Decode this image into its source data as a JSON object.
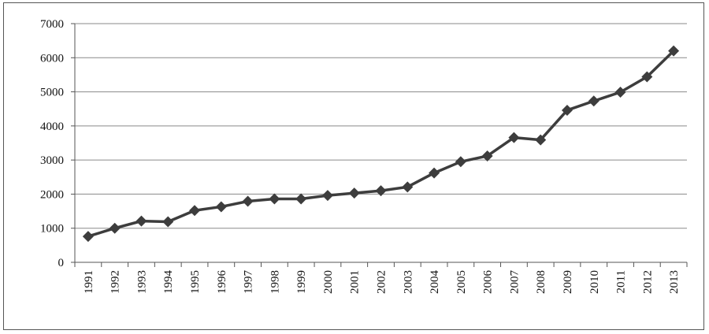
{
  "chart_data": {
    "type": "line",
    "title": "",
    "xlabel": "",
    "ylabel": "",
    "ylim": [
      0,
      7000
    ],
    "yticks": [
      0,
      1000,
      2000,
      3000,
      4000,
      5000,
      6000,
      7000
    ],
    "grid": true,
    "legend": "none",
    "x": [
      "1991",
      "1992",
      "1993",
      "1994",
      "1995",
      "1996",
      "1997",
      "1998",
      "1999",
      "2000",
      "2001",
      "2002",
      "2003",
      "2004",
      "2005",
      "2006",
      "2007",
      "2008",
      "2009",
      "2010",
      "2011",
      "2012",
      "2013"
    ],
    "series": [
      {
        "values": [
          760,
          1000,
          1210,
          1190,
          1520,
          1630,
          1790,
          1860,
          1860,
          1960,
          2030,
          2100,
          2210,
          2620,
          2950,
          3120,
          3660,
          3590,
          4460,
          4730,
          4990,
          5440,
          6200
        ],
        "color": "#3d3d3d",
        "marker": "diamond"
      }
    ]
  }
}
